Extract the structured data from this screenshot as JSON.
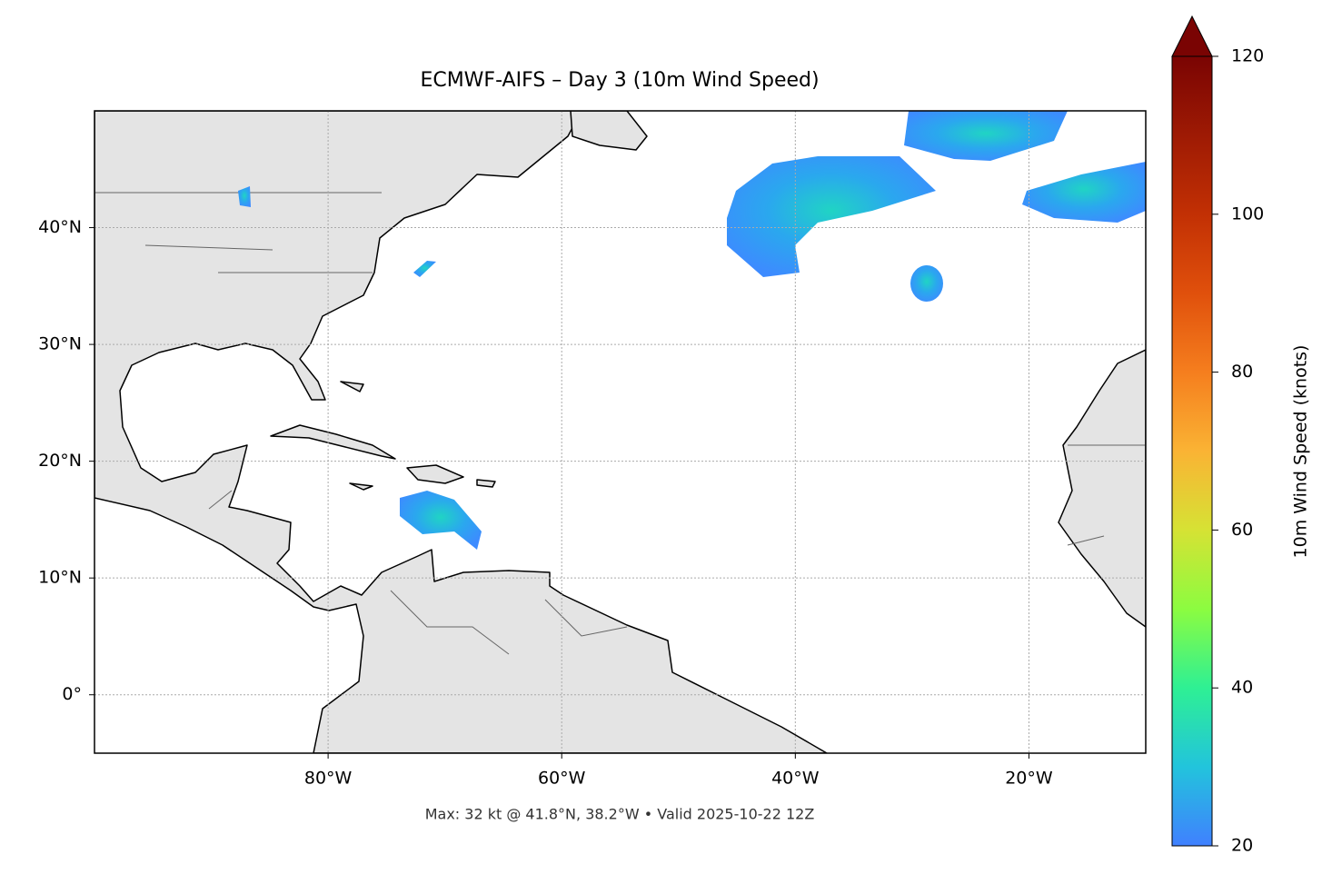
{
  "chart_data": {
    "type": "map",
    "title": "ECMWF-AIFS – Day 3 (10m Wind Speed)",
    "subtitle": "Max: 32 kt @ 41.8°N, 38.2°W • Valid 2025-10-22 12Z",
    "xlim": [
      -100,
      -10
    ],
    "ylim": [
      -5,
      50
    ],
    "xticks": [
      {
        "value": -80,
        "label": "80°W"
      },
      {
        "value": -60,
        "label": "60°W"
      },
      {
        "value": -40,
        "label": "40°W"
      },
      {
        "value": -20,
        "label": "20°W"
      }
    ],
    "yticks": [
      {
        "value": 0,
        "label": "0°"
      },
      {
        "value": 10,
        "label": "10°N"
      },
      {
        "value": 20,
        "label": "20°N"
      },
      {
        "value": 30,
        "label": "30°N"
      },
      {
        "value": 40,
        "label": "40°N"
      }
    ],
    "grid": true,
    "colorbar": {
      "label": "10m Wind Speed (knots)",
      "lim": [
        20,
        120
      ],
      "ticks": [
        20,
        40,
        60,
        80,
        100,
        120
      ]
    }
  }
}
